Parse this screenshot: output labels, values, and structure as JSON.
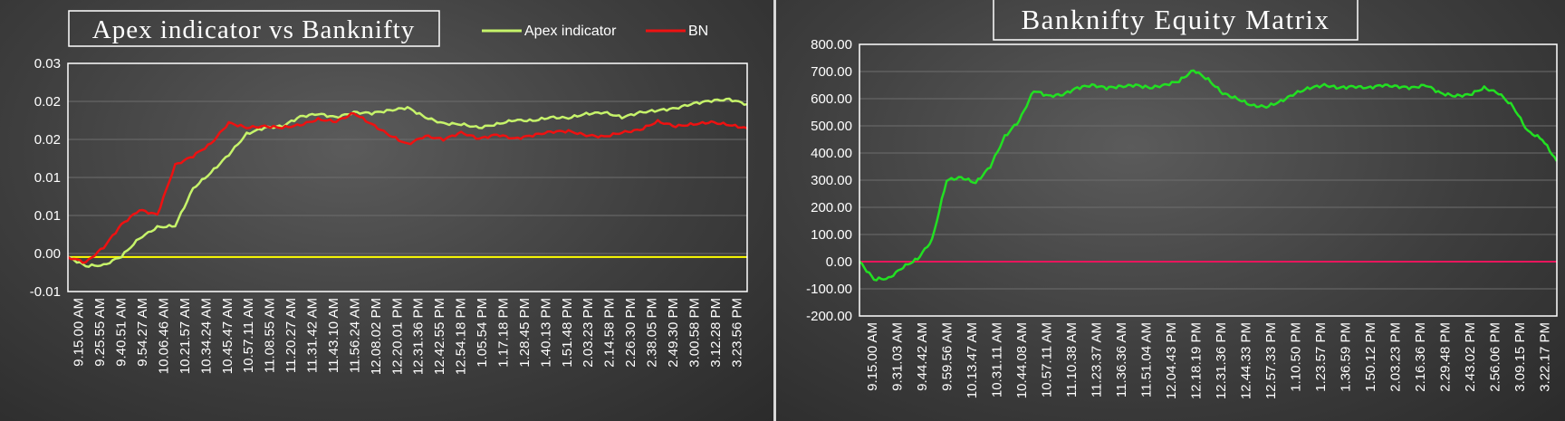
{
  "chart_data": [
    {
      "type": "line",
      "title": "Apex indicator vs Banknifty",
      "xlabel": "",
      "ylabel": "",
      "ylim": [
        -0.005,
        0.028
      ],
      "y_ticks": [
        "0.03",
        "0.02",
        "0.02",
        "0.01",
        "0.01",
        "0.00",
        "-0.01"
      ],
      "x_tick_labels": [
        "9.15.00 AM",
        "9.25.55 AM",
        "9.40.51 AM",
        "9.54.27 AM",
        "10.06.46 AM",
        "10.21.57 AM",
        "10.34.24 AM",
        "10.45.47 AM",
        "10.57.11 AM",
        "11.08.55 AM",
        "11.20.27 AM",
        "11.31.42 AM",
        "11.43.10 AM",
        "11.56.24 AM",
        "12.08.02 PM",
        "12.20.01 PM",
        "12.31.36 PM",
        "12.42.55 PM",
        "12.54.18 PM",
        "1.05.54 PM",
        "1.17.18 PM",
        "1.28.45 PM",
        "1.40.13 PM",
        "1.51.48 PM",
        "2.03.23 PM",
        "2.14.58 PM",
        "2.26.30 PM",
        "2.38.05 PM",
        "2.49.30 PM",
        "3.00.58 PM",
        "3.12.28 PM",
        "3.23.56 PM"
      ],
      "legend_position": "top-right",
      "reference_line": {
        "y": 0,
        "color": "#ffff00"
      },
      "grid": true,
      "series": [
        {
          "name": "Apex indicator",
          "color": "#c6f36a",
          "values": [
            0.0,
            -0.0013,
            -0.0012,
            0.0001,
            0.0027,
            0.0043,
            0.0045,
            0.0099,
            0.0122,
            0.0148,
            0.0178,
            0.0187,
            0.0189,
            0.0203,
            0.0207,
            0.0202,
            0.0209,
            0.0208,
            0.0212,
            0.0216,
            0.0202,
            0.0193,
            0.0192,
            0.0187,
            0.0192,
            0.0198,
            0.0197,
            0.0202,
            0.0201,
            0.0207,
            0.0209,
            0.0202,
            0.0209,
            0.0212,
            0.0215,
            0.0222,
            0.0226,
            0.0228,
            0.0221
          ]
        },
        {
          "name": "BN",
          "color": "#ee1111",
          "values": [
            0.0,
            -0.0008,
            0.0014,
            0.0047,
            0.0068,
            0.0061,
            0.0133,
            0.0146,
            0.0164,
            0.0194,
            0.0187,
            0.0189,
            0.0187,
            0.0191,
            0.0199,
            0.0196,
            0.0208,
            0.0192,
            0.0176,
            0.0163,
            0.0175,
            0.017,
            0.018,
            0.0171,
            0.0177,
            0.0171,
            0.0176,
            0.0181,
            0.0182,
            0.0176,
            0.0174,
            0.018,
            0.0184,
            0.0196,
            0.0189,
            0.0192,
            0.0195,
            0.0191,
            0.0186
          ]
        }
      ]
    },
    {
      "type": "line",
      "title": "Banknifty Equity Matrix",
      "xlabel": "",
      "ylabel": "",
      "ylim": [
        -200,
        800
      ],
      "y_ticks": [
        "800.00",
        "700.00",
        "600.00",
        "500.00",
        "400.00",
        "300.00",
        "200.00",
        "100.00",
        "0.00",
        "-100.00",
        "-200.00"
      ],
      "x_tick_labels": [
        "9.15.00 AM",
        "9.31.03 AM",
        "9.44.42 AM",
        "9.59.56 AM",
        "10.13.47 AM",
        "10.31.11 AM",
        "10.44.08 AM",
        "10.57.11 AM",
        "11.10.38 AM",
        "11.23.37 AM",
        "11.36.36 AM",
        "11.51.04 AM",
        "12.04.43 PM",
        "12.18.19 PM",
        "12.31.36 PM",
        "12.44.33 PM",
        "12.57.33 PM",
        "1.10.50 PM",
        "1.23.57 PM",
        "1.36.59 PM",
        "1.50.12 PM",
        "2.03.23 PM",
        "2.16.36 PM",
        "2.29.48 PM",
        "2.43.02 PM",
        "2.56.06 PM",
        "3.09.15 PM",
        "3.22.17 PM"
      ],
      "reference_line": {
        "y": 0,
        "color": "#e8165c"
      },
      "grid": true,
      "series": [
        {
          "color": "#22e022",
          "values": [
            0,
            -65,
            -62,
            -20,
            10,
            80,
            300,
            310,
            290,
            350,
            460,
            520,
            630,
            610,
            615,
            640,
            650,
            640,
            645,
            650,
            640,
            650,
            665,
            705,
            670,
            620,
            600,
            575,
            570,
            590,
            620,
            640,
            650,
            640,
            645,
            640,
            650,
            645,
            640,
            650,
            620,
            610,
            615,
            640,
            620,
            570,
            480,
            450,
            370
          ]
        }
      ]
    }
  ]
}
